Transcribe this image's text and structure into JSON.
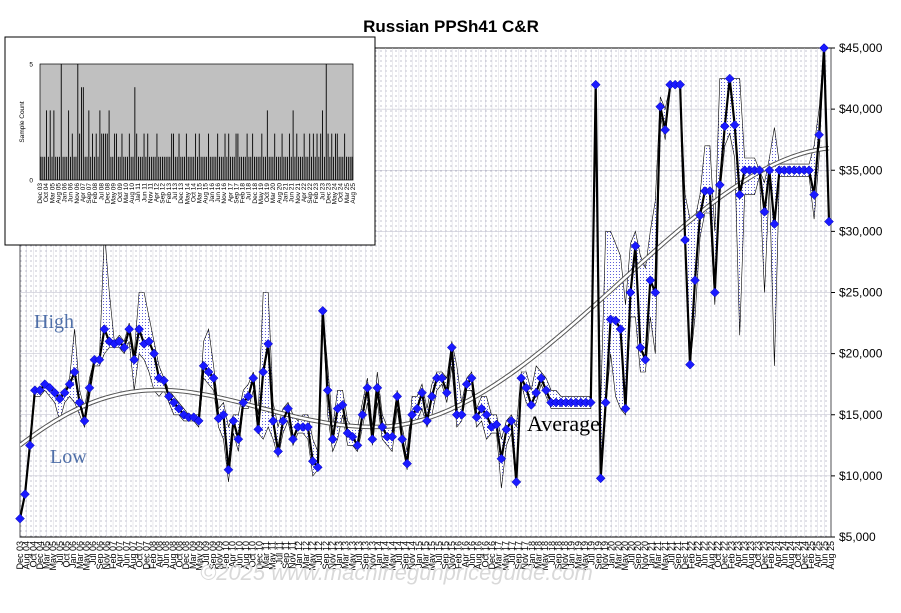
{
  "chart_data": {
    "type": "line",
    "title": "Russian PPSh41 C&R",
    "y_unit_prefix": "$",
    "ylim": [
      5000,
      45000
    ],
    "yticks": [
      "$5,000",
      "$10,000",
      "$15,000",
      "$20,000",
      "$25,000",
      "$30,000",
      "$35,000",
      "$40,000",
      "$45,000"
    ],
    "x_labels": [
      "Dec 03",
      "Aug 04",
      "Oct 04",
      "Dec 04",
      "Mar 05",
      "May 05",
      "Jul 05",
      "Oct 05",
      "Jan 06",
      "Mar 06",
      "May 06",
      "Jul 06",
      "Sep 06",
      "Nov 06",
      "Feb 07",
      "Apr 07",
      "Jun 07",
      "Aug 07",
      "Oct 07",
      "Dec 07",
      "Feb 08",
      "Apr 08",
      "Jun 08",
      "Aug 08",
      "Oct 08",
      "Dec 08",
      "Mar 09",
      "May 09",
      "Jul 09",
      "Sep 09",
      "Nov 09",
      "Feb 10",
      "Apr 10",
      "Jun 10",
      "Aug 10",
      "Oct 10",
      "Dec 10",
      "Mar 11",
      "May 11",
      "Jul 11",
      "Sep 11",
      "Nov 11",
      "Jan 12",
      "Mar 12",
      "May 12",
      "Jul 12",
      "Sep 12",
      "Nov 12",
      "Jan 13",
      "Mar 13",
      "May 13",
      "Jul 13",
      "Sep 13",
      "Nov 13",
      "Jan 14",
      "Mar 14",
      "May 14",
      "Jul 14",
      "Sep 14",
      "Nov 14",
      "Jan 15",
      "Mar 15",
      "May 15",
      "Jul 15",
      "Sep 15",
      "Nov 15",
      "Feb 16",
      "Apr 16",
      "Jun 16",
      "Aug 16",
      "Oct 16",
      "Dec 16",
      "Mar 17",
      "May 17",
      "Jul 17",
      "Sep 17",
      "Nov 17",
      "Jan 18",
      "Mar 18",
      "May 18",
      "Jul 18",
      "Sep 18",
      "Nov 18",
      "Jan 19",
      "Mar 19",
      "May 19",
      "Jul 19",
      "Sep 19",
      "Nov 19",
      "Jan 20",
      "Mar 20",
      "May 20",
      "Jul 20",
      "Sep 20",
      "Nov 20",
      "Jan 21",
      "Mar 21",
      "May 21",
      "Jul 21",
      "Sep 21",
      "Dec 21",
      "Feb 22",
      "Apr 22",
      "Jun 22",
      "Aug 22",
      "Oct 22",
      "Dec 22",
      "Feb 23",
      "Apr 23",
      "Jun 23",
      "Aug 23",
      "Oct 23",
      "Dec 23",
      "Feb 24",
      "Apr 24",
      "Jun 24",
      "Aug 24",
      "Oct 24",
      "Dec 24",
      "Feb 25",
      "Apr 25",
      "Jun 25",
      "Aug 25"
    ],
    "x_labels_shown": [
      "Dec 03",
      "Oct 04",
      "Mar 05",
      "Aug 05",
      "Jan 06",
      "Jun 06",
      "Nov 06",
      "Apr 07",
      "Sep 07",
      "Feb 08",
      "Jul 08",
      "Dec 08",
      "May 09",
      "Oct 09",
      "Mar 10",
      "Aug 10",
      "Jan 11",
      "Jun 11",
      "Nov 11",
      "Apr 12",
      "Sep 12",
      "Feb 13",
      "Jul 13",
      "Dec 13",
      "May 14",
      "Oct 14",
      "Mar 15",
      "Aug 15",
      "Jan 16",
      "Jun 16",
      "Nov 16",
      "Apr 17",
      "Sep 17",
      "Feb 18",
      "Jul 18",
      "Dec 18",
      "May 19",
      "Oct 19",
      "Mar 20",
      "Aug 20",
      "Jan 21",
      "Jun 21",
      "Nov 21",
      "Apr 22",
      "Sep 22",
      "Feb 23",
      "Jul 23",
      "Dec 23",
      "May 24",
      "Oct 24",
      "Mar 25",
      "Aug 25"
    ],
    "series": [
      {
        "values": [
          6500,
          8500,
          12500,
          17000,
          17000,
          17500,
          17200,
          16800,
          16300,
          16800,
          17500,
          18500,
          16000,
          14500,
          17200,
          19500,
          19500,
          22000,
          21000,
          20800,
          21000,
          20500,
          22000,
          19500,
          22000,
          20800,
          21000,
          20000,
          18000,
          17800,
          16500,
          16000,
          15500,
          15000,
          14800,
          14800,
          14500,
          19000,
          18500,
          18000,
          14700,
          15000,
          10500,
          14500,
          13000,
          16000,
          16500,
          18000,
          13800,
          18500,
          20800,
          14500,
          12000,
          14500,
          15500,
          13000,
          14000,
          14000,
          14000,
          11200,
          10700,
          23500,
          17000,
          13000,
          15500,
          15800,
          13500,
          13200,
          12500,
          15000,
          17200,
          13000,
          17200,
          14000,
          13200,
          13200,
          16500,
          13000,
          11000,
          15000,
          15500,
          16800,
          14500,
          16500,
          18000,
          18000,
          16800,
          20500,
          15000,
          15000,
          17500,
          18000,
          14800,
          15500,
          15000,
          14000,
          14200,
          11400,
          13800,
          14500,
          9500,
          18000,
          17200,
          15800,
          16800,
          18000,
          17000,
          16000,
          16000,
          16000,
          16000,
          16000,
          16000,
          16000,
          16000,
          16000,
          42000,
          9800,
          16000,
          22800,
          22700,
          22000,
          15500,
          25000,
          28800,
          20500,
          19500,
          26000,
          25000,
          40200,
          38300,
          42000,
          42000,
          42000,
          29300,
          19100,
          26000,
          31300,
          33300,
          33300,
          25000,
          33800,
          38600,
          42500,
          38700,
          33000,
          35000,
          35000,
          35000,
          35000,
          31600,
          35000,
          30600,
          35000,
          35000,
          35000,
          35000,
          35000,
          35000,
          35000,
          33000,
          37900,
          45000,
          30800
        ]
      },
      {
        "name": "High",
        "values": [
          6500,
          8500,
          12500,
          17000,
          17000,
          17500,
          17500,
          17000,
          16500,
          17000,
          18000,
          22000,
          17000,
          15500,
          18000,
          19500,
          19500,
          30000,
          25000,
          21000,
          21500,
          21000,
          22500,
          20000,
          25000,
          25000,
          23000,
          21000,
          19000,
          18000,
          17000,
          16500,
          16000,
          15500,
          15000,
          15000,
          15000,
          21000,
          22000,
          19000,
          15500,
          16000,
          14000,
          15000,
          15000,
          17000,
          17500,
          18500,
          15000,
          25000,
          25000,
          16000,
          14000,
          15500,
          16000,
          15000,
          14500,
          15000,
          15000,
          13000,
          12000,
          23500,
          19000,
          14000,
          17000,
          17000,
          14500,
          14000,
          14000,
          16000,
          18000,
          14000,
          18500,
          15000,
          14000,
          14000,
          17000,
          14000,
          12000,
          16500,
          16500,
          17500,
          15500,
          17500,
          18500,
          18500,
          18000,
          21000,
          19000,
          16000,
          18000,
          18500,
          15500,
          16500,
          16500,
          15000,
          15000,
          13000,
          14500,
          15000,
          14000,
          18500,
          18500,
          17000,
          19000,
          18500,
          18000,
          17000,
          17000,
          16500,
          16500,
          16500,
          16500,
          16500,
          16500,
          16500,
          42000,
          16000,
          30000,
          30000,
          29000,
          28000,
          24000,
          29000,
          30000,
          28000,
          27000,
          30000,
          32500,
          41000,
          40000,
          42000,
          42000,
          42000,
          33000,
          31000,
          31000,
          33000,
          37000,
          37000,
          30000,
          42500,
          42500,
          42500,
          42500,
          42500,
          36000,
          36000,
          36000,
          35000,
          34000,
          36000,
          38500,
          35500,
          35500,
          35500,
          35500,
          35500,
          35500,
          35500,
          37000,
          40000,
          45000,
          31000
        ]
      },
      {
        "name": "Low",
        "values": [
          6500,
          8500,
          12000,
          16500,
          16500,
          17000,
          16500,
          16000,
          14500,
          16000,
          16500,
          16000,
          15000,
          14000,
          16500,
          19000,
          19000,
          20000,
          20500,
          20500,
          20500,
          20000,
          21000,
          17000,
          20000,
          19500,
          18500,
          17000,
          16500,
          17000,
          16000,
          15000,
          15000,
          14500,
          14500,
          14500,
          14000,
          18000,
          17500,
          17000,
          14000,
          13000,
          9500,
          13500,
          12000,
          15500,
          15500,
          17000,
          13500,
          13000,
          14000,
          13000,
          11500,
          13500,
          14500,
          12500,
          13500,
          13500,
          13000,
          10000,
          10500,
          23500,
          15000,
          12000,
          13000,
          15000,
          12500,
          12500,
          12000,
          14000,
          16000,
          12500,
          16000,
          13000,
          12500,
          12000,
          15500,
          12500,
          10500,
          14500,
          14500,
          15500,
          14000,
          15000,
          17000,
          17500,
          16000,
          19000,
          14000,
          14500,
          17000,
          17000,
          14000,
          14500,
          13000,
          13500,
          13500,
          9000,
          12500,
          13500,
          9000,
          17500,
          16000,
          15500,
          16000,
          17500,
          16500,
          15500,
          15500,
          15500,
          15500,
          15500,
          15500,
          15500,
          15500,
          15500,
          42000,
          9500,
          15500,
          20000,
          16500,
          15500,
          15000,
          23000,
          23000,
          18500,
          18500,
          23000,
          20000,
          39500,
          37500,
          42000,
          42000,
          42000,
          28000,
          19000,
          23000,
          29500,
          31500,
          31500,
          24000,
          33000,
          37000,
          38000,
          36000,
          21500,
          33000,
          33000,
          33000,
          34500,
          25000,
          34000,
          19000,
          34500,
          34500,
          34500,
          34500,
          34500,
          34500,
          34500,
          31000,
          36000,
          45000,
          30500
        ]
      }
    ],
    "trend": {
      "name": "Average",
      "start": 12500,
      "min": 14000,
      "end": 36800
    },
    "annotations": [
      "High",
      "Low",
      "Average"
    ],
    "grid": true,
    "legend": "none",
    "watermark": "©2025   www.machinegunpriceguide.com",
    "inset": {
      "ylabel": "Sample Count",
      "yticks": [
        "0",
        "5"
      ],
      "ylim": [
        0,
        5
      ],
      "x_labels": [
        "Dec 03",
        "Oct 04",
        "Mar 05",
        "Aug 05",
        "Jan 06",
        "Jun 06",
        "Nov 06",
        "Apr 07",
        "Sep 07",
        "Feb 08",
        "Jul 08",
        "Dec 08",
        "May 09",
        "Oct 09",
        "Mar 10",
        "Aug 10",
        "Jan 11",
        "Jun 11",
        "Nov 11",
        "Apr 12",
        "Sep 12",
        "Feb 13",
        "Jul 13",
        "Dec 13",
        "May 14",
        "Oct 14",
        "Mar 15",
        "Aug 15",
        "Jan 16",
        "Jun 16",
        "Nov 16",
        "Apr 17",
        "Sep 17",
        "Feb 18",
        "Jul 18",
        "Dec 18",
        "May 19",
        "Oct 19",
        "Mar 20",
        "Aug 20",
        "Jan 21",
        "Jun 21",
        "Nov 21",
        "Apr 22",
        "Sep 22",
        "Feb 23",
        "Jul 23",
        "Dec 23",
        "May 24",
        "Oct 24",
        "Mar 25",
        "Aug 25"
      ],
      "x_labels_shown": [
        "Dec 03",
        "Mar 05",
        "Jan 06",
        "Jun 06",
        "Nov 06",
        "Apr 07",
        "Sep 07",
        "Feb 08",
        "Jul 08",
        "Dec 08",
        "May 09",
        "Oct 09",
        "Apr 10",
        "Sep 10",
        "Feb 11",
        "Aug 11",
        "Jan 12",
        "Jun 12",
        "Oct 12",
        "Feb 13",
        "Jul 13",
        "Jan 14",
        "Jun 14",
        "Nov 14",
        "Apr 15",
        "Sep 15",
        "Feb 16",
        "Jul 16",
        "Mar 17",
        "Aug 17",
        "Jan 18",
        "Jun 18",
        "Nov 18",
        "Apr 19",
        "Sep 19",
        "Mar 20",
        "Aug 20",
        "Jan 21",
        "Jun 21",
        "Nov 21",
        "Apr 22",
        "Sep 22",
        "Feb 23",
        "Jul 23",
        "Dec 23",
        "May 24",
        "Oct 24",
        "Apr 25",
        "Aug 25"
      ],
      "counts": [
        1,
        1,
        1,
        3,
        1,
        3,
        1,
        3,
        1,
        1,
        1,
        5,
        1,
        1,
        1,
        3,
        1,
        2,
        1,
        1,
        5,
        2,
        4,
        4,
        1,
        1,
        3,
        1,
        2,
        1,
        2,
        1,
        3,
        2,
        2,
        2,
        2,
        3,
        1,
        1,
        2,
        2,
        1,
        1,
        2,
        1,
        1,
        1,
        2,
        1,
        1,
        4,
        2,
        1,
        1,
        1,
        2,
        1,
        2,
        1,
        1,
        1,
        1,
        2,
        1,
        1,
        1,
        1,
        1,
        1,
        1,
        2,
        2,
        1,
        1,
        2,
        1,
        1,
        1,
        2,
        1,
        1,
        1,
        1,
        2,
        1,
        2,
        1,
        1,
        1,
        1,
        2,
        1,
        1,
        1,
        1,
        2,
        1,
        1,
        1,
        2,
        1,
        2,
        1,
        1,
        1,
        2,
        2,
        1,
        1,
        1,
        1,
        2,
        1,
        1,
        2,
        1,
        1,
        1,
        1,
        2,
        1,
        1,
        3,
        1,
        1,
        1,
        2,
        1,
        1,
        1,
        2,
        1,
        1,
        1,
        2,
        1,
        3,
        1,
        2,
        1,
        1,
        1,
        2,
        1,
        1,
        2,
        1,
        2,
        1,
        2,
        1,
        2,
        3,
        1,
        5,
        2,
        1,
        2,
        1,
        2,
        2,
        1,
        1,
        1,
        2,
        1,
        1,
        1,
        1
      ]
    }
  }
}
